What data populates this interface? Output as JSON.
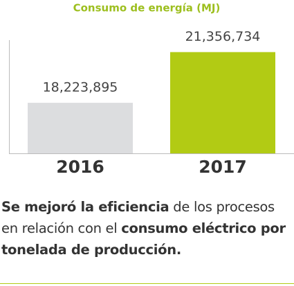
{
  "chart_data": {
    "type": "bar",
    "title": "Consumo de energía (MJ)",
    "categories": [
      "2016",
      "2017"
    ],
    "values": [
      18223895,
      21356734
    ],
    "value_labels": [
      "18,223,895",
      "21,356,734"
    ],
    "colors": [
      "#dcdddf",
      "#b2cb14"
    ],
    "title_color": "#9dbf1f",
    "ylim": [
      15100000,
      22100000
    ]
  },
  "caption": {
    "runs": [
      {
        "text": "Se mejoró la eficiencia",
        "bold": true
      },
      {
        "text": " de los procesos en relación con el ",
        "bold": false
      },
      {
        "text": "consumo eléctrico por tonelada de producción.",
        "bold": true
      }
    ]
  }
}
